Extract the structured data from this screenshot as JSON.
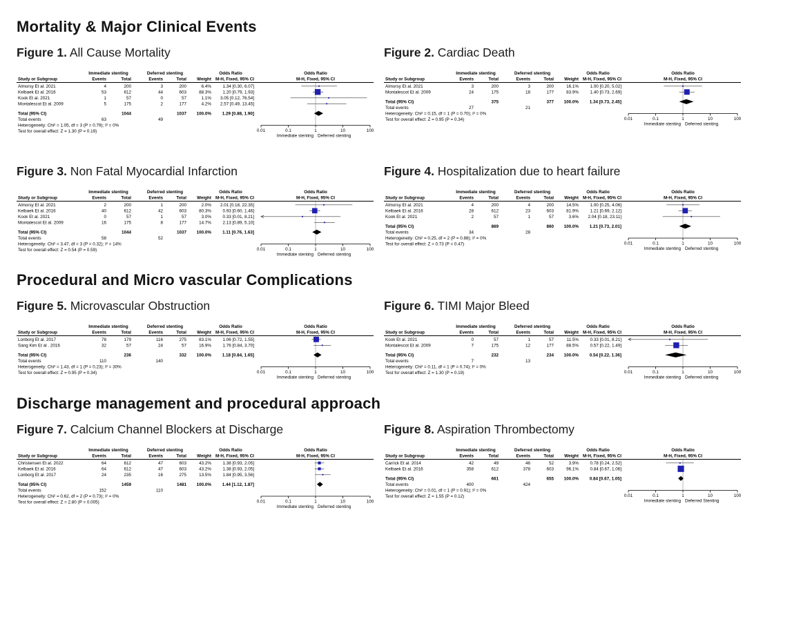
{
  "common": {
    "group1_header": "Immediate stenting",
    "group2_header": "Deferred stenting",
    "or_header": "Odds Ratio",
    "study_col": "Study or Subgroup",
    "events_col": "Events",
    "total_col": "Total",
    "weight_col": "Weight",
    "method_col": "M-H, Fixed, 95% CI",
    "total_label": "Total (95% CI)",
    "total_events_label": "Total events",
    "square_color": "#2020b0",
    "diamond_color": "#000000",
    "axis_ticks": [
      "0.01",
      "0.1",
      "1",
      "10",
      "100"
    ]
  },
  "sections": [
    {
      "heading": "Mortality & Major Clinical Events",
      "figure_ids": [
        0,
        1,
        2,
        3
      ]
    },
    {
      "heading": "Procedural and Micro vascular Complications",
      "figure_ids": [
        4,
        5
      ]
    },
    {
      "heading": "Discharge management and procedural approach",
      "figure_ids": [
        6,
        7
      ]
    }
  ],
  "chart_data": [
    {
      "type": "forest",
      "label": "Figure 1.",
      "title": "All Cause Mortality",
      "studies": [
        {
          "name": "Almorsy Et al. 2021",
          "e1": "4",
          "t1": "200",
          "e2": "3",
          "t2": "200",
          "w": "6.4%",
          "ci": "1.34 [0.30, 6.07]",
          "or": 1.34,
          "lo": 0.3,
          "hi": 6.07,
          "wt": 6.4
        },
        {
          "name": "Kelbaek Et al. 2016",
          "e1": "53",
          "t1": "612",
          "e2": "44",
          "t2": "603",
          "w": "88.3%",
          "ci": "1.20 [0.79, 1.93]",
          "or": 1.2,
          "lo": 0.79,
          "hi": 1.93,
          "wt": 88.3
        },
        {
          "name": "Kook Et al. 2021",
          "e1": "1",
          "t1": "57",
          "e2": "0",
          "t2": "57",
          "w": "1.1%",
          "ci": "3.05 [0.12, 76.54]",
          "or": 3.05,
          "lo": 0.12,
          "hi": 76.54,
          "wt": 1.1
        },
        {
          "name": "Montalescot Et al. 2009",
          "e1": "5",
          "t1": "175",
          "e2": "2",
          "t2": "177",
          "w": "4.2%",
          "ci": "2.57 [0.49, 13.45]",
          "or": 2.57,
          "lo": 0.49,
          "hi": 13.45,
          "wt": 4.2
        }
      ],
      "total": {
        "t1": "1044",
        "t2": "1037",
        "w": "100.0%",
        "ci": "1.29 [0.88, 1.90]",
        "or": 1.29,
        "lo": 0.88,
        "hi": 1.9
      },
      "total_events": {
        "e1": "63",
        "e2": "49"
      },
      "heterogeneity": "Heterogeneity: Chi² = 1.05, df = 3 (P = 0.79); I² = 0%",
      "overall": "Test for overall effect: Z = 1.30 (P = 0.19)",
      "axis_left": "Immediate stenting",
      "axis_right": "Deferred stenting"
    },
    {
      "type": "forest",
      "label": "Figure 2.",
      "title": "Cardiac Death",
      "studies": [
        {
          "name": "Almorsy Et al. 2021",
          "e1": "3",
          "t1": "200",
          "e2": "3",
          "t2": "200",
          "w": "16.1%",
          "ci": "1.00 [0.20, 5.02]",
          "or": 1.0,
          "lo": 0.2,
          "hi": 5.02,
          "wt": 16.1
        },
        {
          "name": "Montalescot Et al. 2009",
          "e1": "24",
          "t1": "175",
          "e2": "18",
          "t2": "177",
          "w": "83.9%",
          "ci": "1.40 [0.73, 2.69]",
          "or": 1.4,
          "lo": 0.73,
          "hi": 2.69,
          "wt": 83.9
        }
      ],
      "total": {
        "t1": "375",
        "t2": "377",
        "w": "100.0%",
        "ci": "1.34 [0.73, 2.45]",
        "or": 1.34,
        "lo": 0.73,
        "hi": 2.45
      },
      "total_events": {
        "e1": "27",
        "e2": "21"
      },
      "heterogeneity": "Heterogeneity: Chi² = 0.15, df = 1 (P = 0.70); I² = 0%",
      "overall": "Test for overall effect: Z = 0.95 (P = 0.34)",
      "axis_left": "Immediate stenting",
      "axis_right": "Deferred stenting"
    },
    {
      "type": "forest",
      "label": "Figure 3.",
      "title": "Non Fatal Myocardial Infarction",
      "studies": [
        {
          "name": "Almorsy Et al. 2021",
          "e1": "2",
          "t1": "200",
          "e2": "1",
          "t2": "200",
          "w": "2.0%",
          "ci": "2.01 [0.18, 22.35]",
          "or": 2.01,
          "lo": 0.18,
          "hi": 22.35,
          "wt": 2.0
        },
        {
          "name": "Kelbaek Et al. 2016",
          "e1": "40",
          "t1": "612",
          "e2": "42",
          "t2": "603",
          "w": "80.3%",
          "ci": "0.93 [0.60, 1.46]",
          "or": 0.93,
          "lo": 0.6,
          "hi": 1.46,
          "wt": 80.3
        },
        {
          "name": "Kook Et al. 2021",
          "e1": "0",
          "t1": "57",
          "e2": "1",
          "t2": "57",
          "w": "3.0%",
          "ci": "0.33 [0.01, 8.21]",
          "or": 0.33,
          "lo": 0.01,
          "hi": 8.21,
          "wt": 3.0
        },
        {
          "name": "Montalescot Et al. 2009",
          "e1": "16",
          "t1": "175",
          "e2": "8",
          "t2": "177",
          "w": "14.7%",
          "ci": "2.13 [0.89, 5.10]",
          "or": 2.13,
          "lo": 0.89,
          "hi": 5.1,
          "wt": 14.7
        }
      ],
      "total": {
        "t1": "1044",
        "t2": "1037",
        "w": "100.0%",
        "ci": "1.11 [0.76, 1.63]",
        "or": 1.11,
        "lo": 0.76,
        "hi": 1.63
      },
      "total_events": {
        "e1": "58",
        "e2": "52"
      },
      "heterogeneity": "Heterogeneity: Chi² = 3.47, df = 3 (P = 0.32); I² = 14%",
      "overall": "Test for overall effect: Z = 0.54 (P = 0.59)",
      "axis_left": "Immediate stenting",
      "axis_right": "Deferred stenting"
    },
    {
      "type": "forest",
      "label": "Figure 4.",
      "title": "Hospitalization due to heart failure",
      "studies": [
        {
          "name": "Almorsy Et al. 2021",
          "e1": "4",
          "t1": "200",
          "e2": "4",
          "t2": "200",
          "w": "14.5%",
          "ci": "1.00 [0.25, 4.06]",
          "or": 1.0,
          "lo": 0.25,
          "hi": 4.06,
          "wt": 14.5
        },
        {
          "name": "Kelbaek Et al. 2016",
          "e1": "28",
          "t1": "612",
          "e2": "23",
          "t2": "603",
          "w": "81.9%",
          "ci": "1.21 [0.69, 2.12]",
          "or": 1.21,
          "lo": 0.69,
          "hi": 2.12,
          "wt": 81.9
        },
        {
          "name": "Kook Et al. 2021",
          "e1": "2",
          "t1": "57",
          "e2": "1",
          "t2": "57",
          "w": "3.6%",
          "ci": "2.04 [0.18, 23.11]",
          "or": 2.04,
          "lo": 0.18,
          "hi": 23.11,
          "wt": 3.6
        }
      ],
      "total": {
        "t1": "869",
        "t2": "860",
        "w": "100.0%",
        "ci": "1.21 [0.73, 2.01]",
        "or": 1.21,
        "lo": 0.73,
        "hi": 2.01
      },
      "total_events": {
        "e1": "34",
        "e2": "28"
      },
      "heterogeneity": "Heterogeneity: Chi² = 0.25, df = 2 (P = 0.88); I² = 0%",
      "overall": "Test for overall effect: Z = 0.73 (P = 0.47)",
      "axis_left": "Immediate stenting",
      "axis_right": "Deferred stenting"
    },
    {
      "type": "forest",
      "label": "Figure 5.",
      "title": "Microvascular Obstruction",
      "studies": [
        {
          "name": "Lonborg Et al. 2017",
          "e1": "78",
          "t1": "179",
          "e2": "116",
          "t2": "275",
          "w": "83.1%",
          "ci": "1.06 [0.72, 1.55]",
          "or": 1.06,
          "lo": 0.72,
          "hi": 1.55,
          "wt": 83.1
        },
        {
          "name": "Sang Kim Et al . 2016",
          "e1": "32",
          "t1": "57",
          "e2": "24",
          "t2": "57",
          "w": "16.9%",
          "ci": "1.76 [0.84, 3.70]",
          "or": 1.76,
          "lo": 0.84,
          "hi": 3.7,
          "wt": 16.9
        }
      ],
      "total": {
        "t1": "236",
        "t2": "332",
        "w": "100.0%",
        "ci": "1.18 [0.84, 1.65]",
        "or": 1.18,
        "lo": 0.84,
        "hi": 1.65
      },
      "total_events": {
        "e1": "110",
        "e2": "140"
      },
      "heterogeneity": "Heterogeneity: Chi² = 1.43, df = 1 (P = 0.23); I² = 30%",
      "overall": "Test for overall effect: Z = 0.95 (P = 0.34)",
      "axis_left": "Immediate stenting",
      "axis_right": "Deferred stenting"
    },
    {
      "type": "forest",
      "label": "Figure 6.",
      "title": "TIMI Major Bleed",
      "studies": [
        {
          "name": "Kook Et al. 2021",
          "e1": "0",
          "t1": "57",
          "e2": "1",
          "t2": "57",
          "w": "11.5%",
          "ci": "0.33 [0.01, 8.21]",
          "or": 0.33,
          "lo": 0.01,
          "hi": 8.21,
          "wt": 11.5
        },
        {
          "name": "Montalescot Et al. 2009",
          "e1": "7",
          "t1": "175",
          "e2": "12",
          "t2": "177",
          "w": "88.5%",
          "ci": "0.57 [0.22, 1.49]",
          "or": 0.57,
          "lo": 0.22,
          "hi": 1.49,
          "wt": 88.5
        }
      ],
      "total": {
        "t1": "232",
        "t2": "234",
        "w": "100.0%",
        "ci": "0.54 [0.22, 1.36]",
        "or": 0.54,
        "lo": 0.22,
        "hi": 1.36
      },
      "total_events": {
        "e1": "7",
        "e2": "13"
      },
      "heterogeneity": "Heterogeneity: Chi² = 0.11, df = 1 (P = 0.74); I² = 0%",
      "overall": "Test for overall effect: Z = 1.30 (P = 0.19)",
      "axis_left": "Immediate stenting",
      "axis_right": "Deferred stenting"
    },
    {
      "type": "forest",
      "label": "Figure 7.",
      "title": "Calcium Channel Blockers at Discharge",
      "studies": [
        {
          "name": "Christensen Et al. 2022",
          "e1": "64",
          "t1": "612",
          "e2": "47",
          "t2": "603",
          "w": "43.2%",
          "ci": "1.38 [0.93, 2.05]",
          "or": 1.38,
          "lo": 0.93,
          "hi": 2.05,
          "wt": 43.2
        },
        {
          "name": "Kelbaek Et al. 2016",
          "e1": "64",
          "t1": "612",
          "e2": "47",
          "t2": "603",
          "w": "43.2%",
          "ci": "1.38 [0.93, 2.05]",
          "or": 1.38,
          "lo": 0.93,
          "hi": 2.05,
          "wt": 43.2
        },
        {
          "name": "Lonborg Et al. 2017",
          "e1": "24",
          "t1": "235",
          "e2": "16",
          "t2": "275",
          "w": "13.5%",
          "ci": "1.84 [0.95, 3.56]",
          "or": 1.84,
          "lo": 0.95,
          "hi": 3.56,
          "wt": 13.5
        }
      ],
      "total": {
        "t1": "1459",
        "t2": "1481",
        "w": "100.0%",
        "ci": "1.44 [1.12, 1.87]",
        "or": 1.44,
        "lo": 1.12,
        "hi": 1.87
      },
      "total_events": {
        "e1": "152",
        "e2": "110"
      },
      "heterogeneity": "Heterogeneity: Chi² = 0.62, df = 2 (P = 0.73); I² = 0%",
      "overall": "Test for overall effect: Z = 2.80 (P = 0.005)",
      "axis_left": "Immediate stenting",
      "axis_right": "Deferred stenting"
    },
    {
      "type": "forest",
      "label": "Figure 8.",
      "title": "Aspiration Thrombectomy",
      "studies": [
        {
          "name": "Carrick Et al. 2014",
          "e1": "42",
          "t1": "49",
          "e2": "46",
          "t2": "52",
          "w": "3.9%",
          "ci": "0.78 [0.24, 2.52]",
          "or": 0.78,
          "lo": 0.24,
          "hi": 2.52,
          "wt": 3.9
        },
        {
          "name": "Kelbaek Et al. 2016",
          "e1": "358",
          "t1": "612",
          "e2": "378",
          "t2": "603",
          "w": "96.1%",
          "ci": "0.84 [0.67, 1.06]",
          "or": 0.84,
          "lo": 0.67,
          "hi": 1.06,
          "wt": 96.1
        }
      ],
      "total": {
        "t1": "661",
        "t2": "655",
        "w": "100.0%",
        "ci": "0.84 [0.67, 1.05]",
        "or": 0.84,
        "lo": 0.67,
        "hi": 1.05
      },
      "total_events": {
        "e1": "400",
        "e2": "424"
      },
      "heterogeneity": "Heterogeneity: Chi² = 0.01, df = 1 (P = 0.91); I² = 0%",
      "overall": "Test for overall effect: Z = 1.55 (P = 0.12)",
      "axis_left": "Immediate stenting",
      "axis_right": "Deferred Stenting"
    }
  ]
}
